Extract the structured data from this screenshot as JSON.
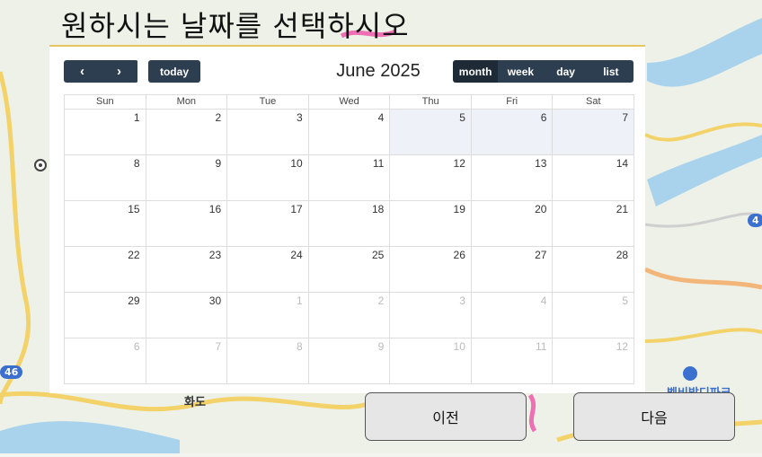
{
  "title": "원하시는 날짜를 선택하시오",
  "calendar": {
    "month_title": "June 2025",
    "prev_label": "‹",
    "next_label": "›",
    "today_label": "today",
    "views": [
      "month",
      "week",
      "day",
      "list"
    ],
    "active_view": "month",
    "weekdays": [
      "Sun",
      "Mon",
      "Tue",
      "Wed",
      "Thu",
      "Fri",
      "Sat"
    ],
    "weeks": [
      [
        "1",
        "2",
        "3",
        "4",
        "5",
        "6",
        "7"
      ],
      [
        "8",
        "9",
        "10",
        "11",
        "12",
        "13",
        "14"
      ],
      [
        "15",
        "16",
        "17",
        "18",
        "19",
        "20",
        "21"
      ],
      [
        "22",
        "23",
        "24",
        "25",
        "26",
        "27",
        "28"
      ],
      [
        "29",
        "30",
        "1",
        "2",
        "3",
        "4",
        "5"
      ],
      [
        "6",
        "7",
        "8",
        "9",
        "10",
        "11",
        "12"
      ]
    ]
  },
  "buttons": {
    "prev_step": "이전",
    "next_step": "다음"
  },
  "map": {
    "place_label_1": "화도",
    "place_label_2": "벨비발디파크",
    "road_badge_1": "46",
    "road_badge_2": "4"
  }
}
